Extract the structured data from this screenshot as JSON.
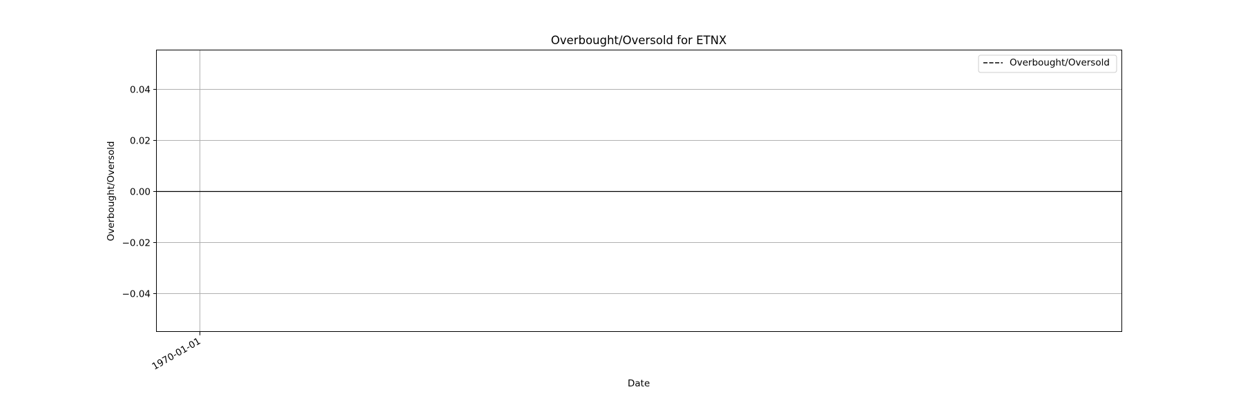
{
  "chart_data": {
    "type": "line",
    "title": "Overbought/Oversold for ETNX",
    "xlabel": "Date",
    "ylabel": "Overbought/Oversold",
    "x_ticks": [
      "1970-01-01"
    ],
    "y_ticks": [
      0.04,
      0.02,
      0.0,
      -0.02,
      -0.04
    ],
    "y_tick_labels": [
      "0.04",
      "0.02",
      "0.00",
      "−0.02",
      "−0.04"
    ],
    "ylim": [
      -0.055,
      0.055
    ],
    "grid": true,
    "legend_position": "upper-right",
    "series": [
      {
        "name": "Overbought/Oversold",
        "line_style": "dashed",
        "color": "#000000",
        "x": [],
        "values": []
      }
    ],
    "reference_lines": [
      {
        "y": 0.0,
        "color": "#000000",
        "style": "solid"
      }
    ]
  },
  "colors": {
    "axis": "#000000",
    "grid": "#b0b0b0",
    "legend_border": "#cccccc"
  }
}
